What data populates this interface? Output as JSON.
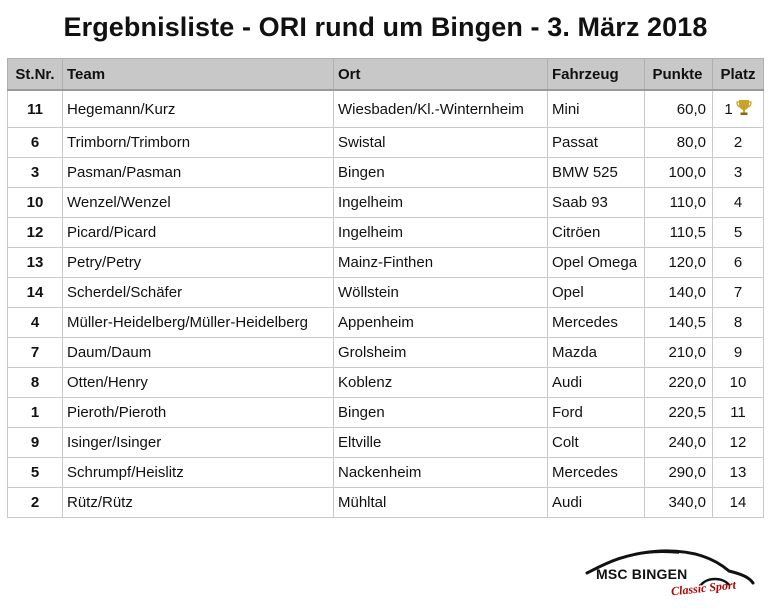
{
  "title": "Ergebnisliste - ORI rund um Bingen - 3. März 2018",
  "columns": {
    "stnr": "St.Nr.",
    "team": "Team",
    "ort": "Ort",
    "fahrzeug": "Fahrzeug",
    "punkte": "Punkte",
    "platz": "Platz"
  },
  "rows": [
    {
      "stnr": "11",
      "team": "Hegemann/Kurz",
      "ort": "Wiesbaden/Kl.-Winternheim",
      "fahrzeug": "Mini",
      "punkte": "60,0",
      "platz": "1",
      "icon": "trophy-icon"
    },
    {
      "stnr": "6",
      "team": "Trimborn/Trimborn",
      "ort": "Swistal",
      "fahrzeug": "Passat",
      "punkte": "80,0",
      "platz": "2"
    },
    {
      "stnr": "3",
      "team": "Pasman/Pasman",
      "ort": "Bingen",
      "fahrzeug": "BMW 525",
      "punkte": "100,0",
      "platz": "3"
    },
    {
      "stnr": "10",
      "team": "Wenzel/Wenzel",
      "ort": "Ingelheim",
      "fahrzeug": "Saab 93",
      "punkte": "110,0",
      "platz": "4"
    },
    {
      "stnr": "12",
      "team": "Picard/Picard",
      "ort": "Ingelheim",
      "fahrzeug": "Citröen",
      "punkte": "110,5",
      "platz": "5"
    },
    {
      "stnr": "13",
      "team": "Petry/Petry",
      "ort": "Mainz-Finthen",
      "fahrzeug": "Opel Omega",
      "punkte": "120,0",
      "platz": "6"
    },
    {
      "stnr": "14",
      "team": "Scherdel/Schäfer",
      "ort": "Wöllstein",
      "fahrzeug": "Opel",
      "punkte": "140,0",
      "platz": "7"
    },
    {
      "stnr": "4",
      "team": "Müller-Heidelberg/Müller-Heidelberg",
      "ort": "Appenheim",
      "fahrzeug": "Mercedes",
      "punkte": "140,5",
      "platz": "8"
    },
    {
      "stnr": "7",
      "team": "Daum/Daum",
      "ort": "Grolsheim",
      "fahrzeug": "Mazda",
      "punkte": "210,0",
      "platz": "9"
    },
    {
      "stnr": "8",
      "team": "Otten/Henry",
      "ort": "Koblenz",
      "fahrzeug": "Audi",
      "punkte": "220,0",
      "platz": "10"
    },
    {
      "stnr": "1",
      "team": "Pieroth/Pieroth",
      "ort": "Bingen",
      "fahrzeug": "Ford",
      "punkte": "220,5",
      "platz": "11"
    },
    {
      "stnr": "9",
      "team": "Isinger/Isinger",
      "ort": "Eltville",
      "fahrzeug": "Colt",
      "punkte": "240,0",
      "platz": "12"
    },
    {
      "stnr": "5",
      "team": "Schrumpf/Heislitz",
      "ort": "Nackenheim",
      "fahrzeug": "Mercedes",
      "punkte": "290,0",
      "platz": "13"
    },
    {
      "stnr": "2",
      "team": "Rütz/Rütz",
      "ort": "Mühltal",
      "fahrzeug": "Audi",
      "punkte": "340,0",
      "platz": "14"
    }
  ],
  "logo": {
    "main": "MSC BINGEN",
    "sub": "Classic Sport",
    "accent_color": "#b00000",
    "icon": "car-silhouette-icon"
  },
  "colors": {
    "header_bg": "#c8c8c8",
    "trophy": "#c9a227"
  }
}
